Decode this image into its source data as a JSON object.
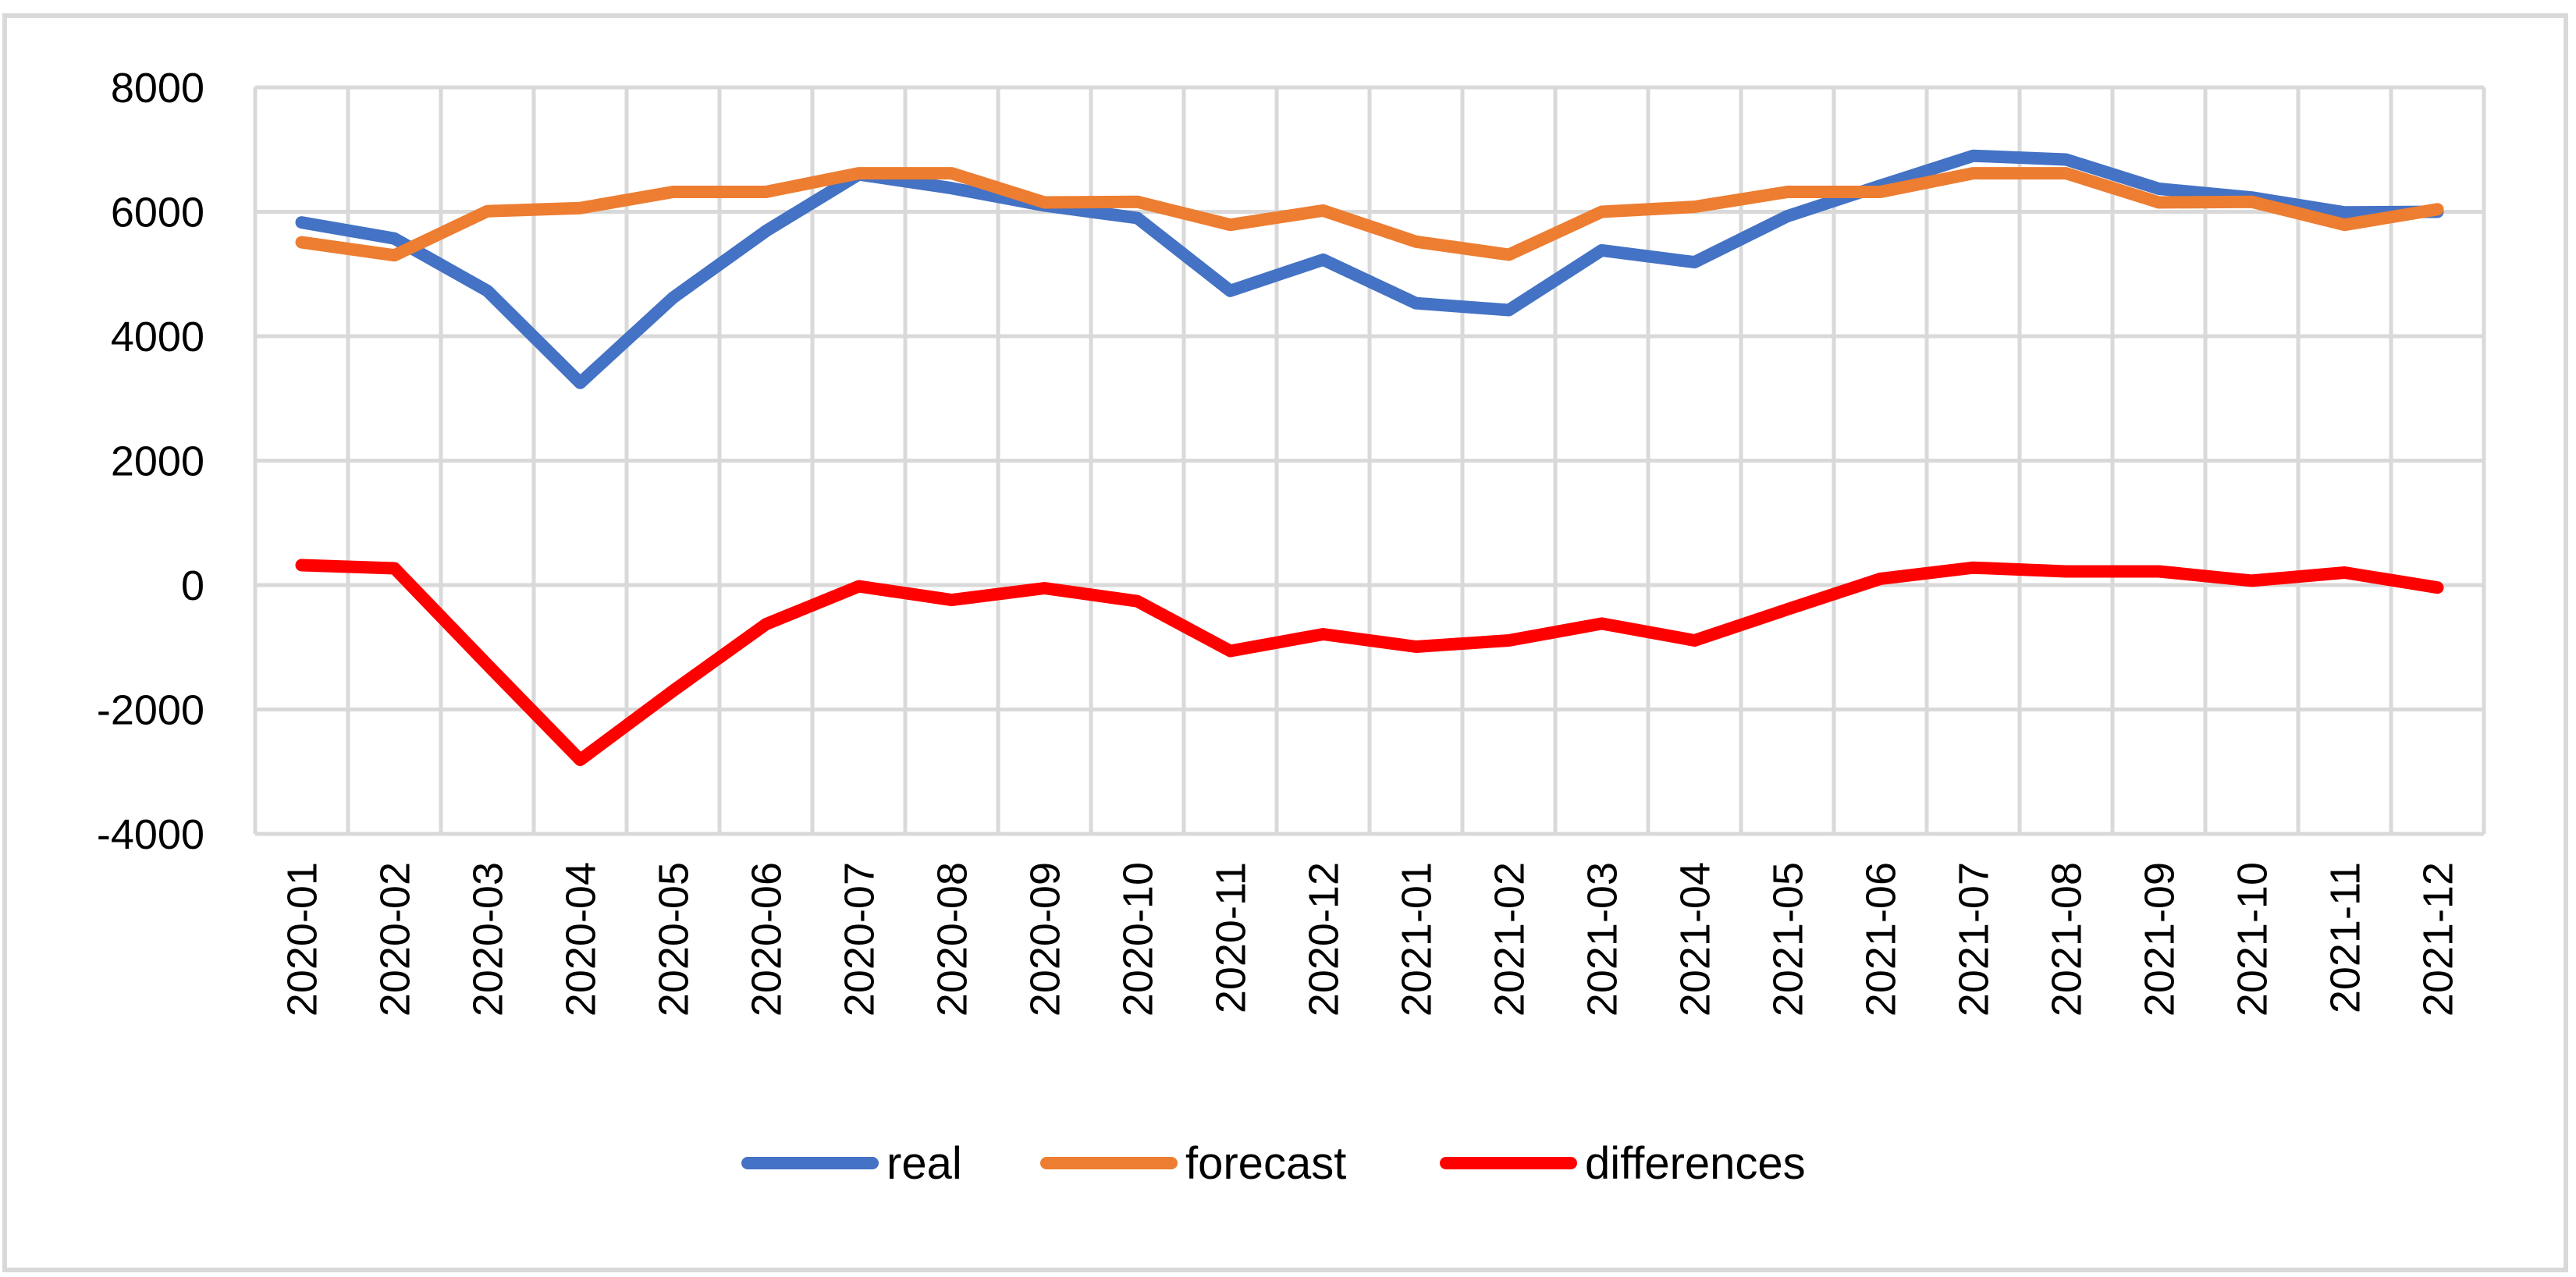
{
  "chart_data": {
    "type": "line",
    "title": "",
    "xlabel": "",
    "ylabel": "",
    "categories": [
      "2020-01",
      "2020-02",
      "2020-03",
      "2020-04",
      "2020-05",
      "2020-06",
      "2020-07",
      "2020-08",
      "2020-09",
      "2020-10",
      "2020-11",
      "2020-12",
      "2021-01",
      "2021-02",
      "2021-03",
      "2021-04",
      "2021-05",
      "2021-06",
      "2021-07",
      "2021-08",
      "2021-09",
      "2021-10",
      "2021-11",
      "2021-12"
    ],
    "ylim": [
      -4000,
      8000
    ],
    "yticks": [
      "8000",
      "6000",
      "4000",
      "2000",
      "0",
      "-2000",
      "-4000"
    ],
    "grid": true,
    "legend_position": "bottom",
    "series": [
      {
        "name": "real",
        "color": "#4472C4",
        "values": [
          5830,
          5570,
          4730,
          3250,
          4620,
          5690,
          6600,
          6380,
          6100,
          5900,
          4730,
          5230,
          4530,
          4420,
          5380,
          5190,
          5930,
          6420,
          6900,
          6840,
          6370,
          6230,
          5990,
          6000
        ]
      },
      {
        "name": "forecast",
        "color": "#ED7D31",
        "values": [
          5510,
          5300,
          6010,
          6060,
          6320,
          6320,
          6620,
          6620,
          6150,
          6160,
          5790,
          6020,
          5520,
          5310,
          6000,
          6080,
          6320,
          6320,
          6620,
          6620,
          6150,
          6160,
          5790,
          6040
        ]
      },
      {
        "name": "differences",
        "color": "#FF0000",
        "values": [
          320,
          270,
          -1280,
          -2810,
          -1700,
          -630,
          -20,
          -240,
          -50,
          -260,
          -1060,
          -790,
          -990,
          -890,
          -620,
          -890,
          -390,
          100,
          280,
          220,
          220,
          70,
          200,
          -40
        ]
      }
    ]
  }
}
